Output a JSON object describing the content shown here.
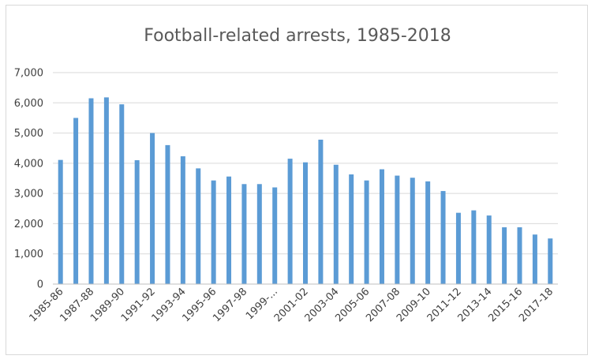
{
  "chart_data": {
    "type": "bar",
    "title": "Football-related arrests, 1985-2018",
    "xlabel": "",
    "ylabel": "",
    "ylim": [
      0,
      7000
    ],
    "yticks": [
      "0",
      "1,000",
      "2,000",
      "3,000",
      "4,000",
      "5,000",
      "6,000",
      "7,000"
    ],
    "ytick_values": [
      0,
      1000,
      2000,
      3000,
      4000,
      5000,
      6000,
      7000
    ],
    "categories": [
      "1985-86",
      "1986-87",
      "1987-88",
      "1988-89",
      "1989-90",
      "1990-91",
      "1991-92",
      "1992-93",
      "1993-94",
      "1994-95",
      "1995-96",
      "1996-97",
      "1997-98",
      "1998-99",
      "1999-...",
      "2000-01",
      "2001-02",
      "2002-03",
      "2003-04",
      "2004-05",
      "2005-06",
      "2006-07",
      "2007-08",
      "2008-09",
      "2009-10",
      "2010-11",
      "2011-12",
      "2012-13",
      "2013-14",
      "2014-15",
      "2015-16",
      "2016-17",
      "2017-18"
    ],
    "visible_labels": [
      "1985-86",
      "1987-88",
      "1989-90",
      "1991-92",
      "1993-94",
      "1995-96",
      "1997-98",
      "1999-...",
      "2001-02",
      "2003-04",
      "2005-06",
      "2007-08",
      "2009-10",
      "2011-12",
      "2013-14",
      "2015-16",
      "2017-18"
    ],
    "values": [
      4110,
      5500,
      6150,
      6180,
      5950,
      4100,
      5000,
      4600,
      4230,
      3830,
      3430,
      3560,
      3310,
      3310,
      3200,
      4150,
      4030,
      4780,
      3950,
      3630,
      3430,
      3800,
      3590,
      3520,
      3400,
      3080,
      2360,
      2440,
      2270,
      1880,
      1880,
      1640,
      1510
    ],
    "bar_color": "#5b9bd5",
    "grid": true,
    "legend": "none"
  }
}
